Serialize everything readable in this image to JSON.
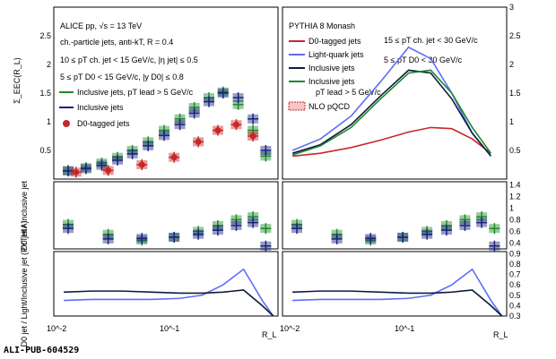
{
  "chart_data": [
    {
      "type": "line",
      "panel": "top-left",
      "ylabel": "Σ_EEC(R_L)",
      "xscale": "log",
      "xlim": [
        0.01,
        0.6
      ],
      "ylim": [
        0,
        3.0
      ],
      "yticks": [
        "0.5",
        "1",
        "1.5",
        "2",
        "2.5"
      ],
      "text": [
        "ALICE pp, √s = 13 TeV",
        "ch.-particle jets, anti-kT, R = 0.4",
        "10 ≤ pT ch. jet < 15 GeV/c, |η jet| ≤ 0.5",
        "5 ≤ pT D0 < 15 GeV/c, |y D0| ≤ 0.8"
      ],
      "legend": [
        "Inclusive jets, pT lead > 5 GeV/c",
        "Inclusive jets",
        "D0-tagged jets"
      ],
      "colors": {
        "green": "#1c8a2a",
        "blue": "#1a237e",
        "red": "#c62828"
      },
      "series": [
        {
          "color": "green",
          "x": [
            0.013,
            0.018,
            0.024,
            0.032,
            0.042,
            0.056,
            0.075,
            0.1,
            0.13,
            0.17,
            0.22,
            0.29,
            0.38,
            0.48
          ],
          "y": [
            0.15,
            0.2,
            0.28,
            0.38,
            0.5,
            0.65,
            0.85,
            1.05,
            1.25,
            1.42,
            1.52,
            1.3,
            0.85,
            0.4
          ]
        },
        {
          "color": "blue",
          "x": [
            0.013,
            0.018,
            0.024,
            0.032,
            0.042,
            0.056,
            0.075,
            0.1,
            0.13,
            0.17,
            0.22,
            0.29,
            0.38,
            0.48
          ],
          "y": [
            0.14,
            0.18,
            0.24,
            0.33,
            0.44,
            0.58,
            0.76,
            0.95,
            1.15,
            1.35,
            1.5,
            1.42,
            1.05,
            0.5
          ]
        },
        {
          "color": "red",
          "x": [
            0.015,
            0.027,
            0.05,
            0.09,
            0.14,
            0.2,
            0.28,
            0.38
          ],
          "y": [
            0.12,
            0.15,
            0.25,
            0.38,
            0.65,
            0.85,
            0.95,
            0.75
          ]
        }
      ]
    },
    {
      "type": "line",
      "panel": "top-right",
      "xscale": "log",
      "xlim": [
        0.01,
        0.6
      ],
      "ylim": [
        0,
        3.0
      ],
      "yticks": [
        "0.5",
        "1",
        "1.5",
        "2",
        "2.5",
        "3"
      ],
      "text": [
        "PYTHIA 8 Monash",
        "15 ≤ pT ch. jet < 30 GeV/c",
        "5 ≤ pT D0 < 30 GeV/c",
        "pT lead > 5 GeV/c"
      ],
      "legend": [
        "D0-tagged jets",
        "Light-quark jets",
        "Inclusive jets",
        "Inclusive jets",
        "NLO pQCD"
      ],
      "series": [
        {
          "name": "D0-tagged jets",
          "color": "red",
          "x": [
            0.012,
            0.02,
            0.035,
            0.06,
            0.1,
            0.15,
            0.22,
            0.32,
            0.45
          ],
          "y": [
            0.4,
            0.45,
            0.55,
            0.68,
            0.82,
            0.9,
            0.88,
            0.7,
            0.45
          ]
        },
        {
          "name": "Light-quark jets",
          "color": "lightblue",
          "x": [
            0.012,
            0.02,
            0.035,
            0.06,
            0.1,
            0.15,
            0.22,
            0.32,
            0.45
          ],
          "y": [
            0.5,
            0.7,
            1.1,
            1.7,
            2.3,
            2.1,
            1.5,
            0.8,
            0.4
          ]
        },
        {
          "name": "Inclusive jets",
          "color": "black",
          "x": [
            0.012,
            0.02,
            0.035,
            0.06,
            0.1,
            0.15,
            0.22,
            0.32,
            0.45
          ],
          "y": [
            0.45,
            0.6,
            0.95,
            1.45,
            1.9,
            1.85,
            1.4,
            0.8,
            0.4
          ]
        },
        {
          "name": "Inclusive jets",
          "color": "green",
          "x": [
            0.012,
            0.02,
            0.035,
            0.06,
            0.1,
            0.15,
            0.22,
            0.32,
            0.45
          ],
          "y": [
            0.42,
            0.58,
            0.9,
            1.4,
            1.85,
            1.9,
            1.5,
            0.9,
            0.45
          ]
        }
      ]
    },
    {
      "type": "line",
      "panel": "middle",
      "ylabel": "D0 jet / Inclusive jet",
      "ylim": [
        0.3,
        1.45
      ],
      "yticks": [
        "0.4",
        "0.6",
        "0.8",
        "1",
        "1.2",
        "1.4"
      ],
      "series": [
        {
          "color": "green",
          "x": [
            0.013,
            0.027,
            0.05,
            0.09,
            0.14,
            0.2,
            0.28,
            0.38,
            0.48
          ],
          "y": [
            0.72,
            0.55,
            0.45,
            0.5,
            0.6,
            0.7,
            0.8,
            0.85,
            0.65
          ]
        },
        {
          "color": "blue",
          "x": [
            0.013,
            0.027,
            0.05,
            0.09,
            0.14,
            0.2,
            0.28,
            0.38,
            0.48
          ],
          "y": [
            0.65,
            0.47,
            0.48,
            0.5,
            0.55,
            0.62,
            0.7,
            0.75,
            0.35
          ]
        }
      ]
    },
    {
      "type": "line",
      "panel": "bottom",
      "ylabel": "D0 jet / Light/Inclusive jet (PYTHIA)",
      "ylim": [
        0.3,
        0.92
      ],
      "yticks": [
        "0.3",
        "0.4",
        "0.5",
        "0.6",
        "0.7",
        "0.8",
        "0.9"
      ],
      "xticks": [
        "10^-2",
        "10^-1"
      ],
      "xlabel": "R_L",
      "series": [
        {
          "name": "D0/Light",
          "color": "lightblue",
          "x": [
            0.012,
            0.02,
            0.035,
            0.06,
            0.1,
            0.15,
            0.22,
            0.32,
            0.45,
            0.55
          ],
          "y": [
            0.45,
            0.46,
            0.46,
            0.46,
            0.47,
            0.5,
            0.6,
            0.75,
            0.45,
            0.3
          ]
        },
        {
          "name": "D0/Inclusive",
          "color": "black",
          "x": [
            0.012,
            0.02,
            0.035,
            0.06,
            0.1,
            0.15,
            0.22,
            0.32,
            0.45,
            0.55
          ],
          "y": [
            0.53,
            0.54,
            0.54,
            0.53,
            0.52,
            0.52,
            0.53,
            0.55,
            0.4,
            0.3
          ]
        }
      ]
    }
  ],
  "footer": "ALI-PUB-604529"
}
